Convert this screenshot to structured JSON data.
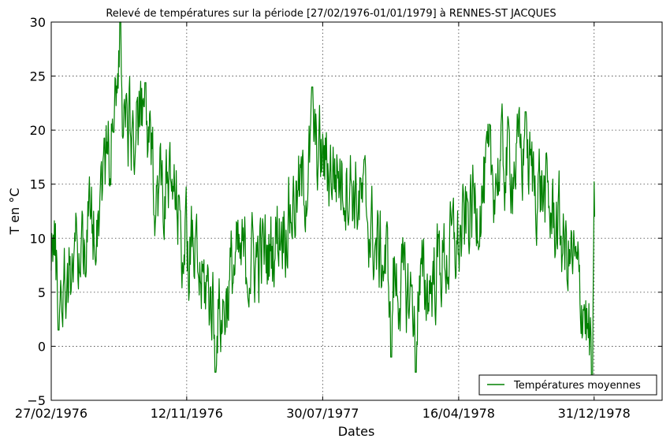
{
  "chart_data": {
    "type": "line",
    "title": "Relevé de températures sur la période [27/02/1976-01/01/1979] à RENNES-ST JACQUES",
    "xlabel": "Dates",
    "ylabel": "T en °C",
    "x_start": "1976-02-27",
    "x_end": "1979-01-01",
    "xlim": [
      "1976-02-27",
      "1979-05-10"
    ],
    "ylim": [
      -5,
      30
    ],
    "y_ticks": [
      -5,
      0,
      5,
      10,
      15,
      20,
      25,
      30
    ],
    "x_ticks": [
      {
        "date": "1976-02-27",
        "label": "27/02/1976"
      },
      {
        "date": "1976-11-12",
        "label": "12/11/1976"
      },
      {
        "date": "1977-07-30",
        "label": "30/07/1977"
      },
      {
        "date": "1978-04-16",
        "label": "16/04/1978"
      },
      {
        "date": "1978-12-31",
        "label": "31/12/1978"
      }
    ],
    "grid": true,
    "legend_position": "bottom-right",
    "series": [
      {
        "name": "Températures moyennes",
        "color": "#008000",
        "monthly_mean": [
          {
            "date": "1976-02-27",
            "value": 10.5
          },
          {
            "date": "1976-03-15",
            "value": 5.5
          },
          {
            "date": "1976-04-15",
            "value": 8.5
          },
          {
            "date": "1976-05-15",
            "value": 11.5
          },
          {
            "date": "1976-06-15",
            "value": 17.5
          },
          {
            "date": "1976-07-01",
            "value": 24.0
          },
          {
            "date": "1976-07-15",
            "value": 21.0
          },
          {
            "date": "1976-08-01",
            "value": 19.5
          },
          {
            "date": "1976-08-20",
            "value": 20.5
          },
          {
            "date": "1976-09-15",
            "value": 15.0
          },
          {
            "date": "1976-10-15",
            "value": 14.0
          },
          {
            "date": "1976-11-15",
            "value": 9.0
          },
          {
            "date": "1976-12-15",
            "value": 5.5
          },
          {
            "date": "1977-01-15",
            "value": 3.0
          },
          {
            "date": "1977-02-15",
            "value": 7.5
          },
          {
            "date": "1977-03-15",
            "value": 8.0
          },
          {
            "date": "1977-04-15",
            "value": 8.5
          },
          {
            "date": "1977-05-15",
            "value": 11.5
          },
          {
            "date": "1977-06-15",
            "value": 14.0
          },
          {
            "date": "1977-07-15",
            "value": 18.0
          },
          {
            "date": "1977-08-15",
            "value": 16.5
          },
          {
            "date": "1977-09-15",
            "value": 15.5
          },
          {
            "date": "1977-10-15",
            "value": 13.0
          },
          {
            "date": "1977-11-15",
            "value": 8.5
          },
          {
            "date": "1977-12-15",
            "value": 6.0
          },
          {
            "date": "1978-01-15",
            "value": 4.5
          },
          {
            "date": "1978-02-15",
            "value": 5.5
          },
          {
            "date": "1978-03-15",
            "value": 8.0
          },
          {
            "date": "1978-04-15",
            "value": 9.5
          },
          {
            "date": "1978-05-15",
            "value": 13.0
          },
          {
            "date": "1978-06-15",
            "value": 15.5
          },
          {
            "date": "1978-07-15",
            "value": 17.0
          },
          {
            "date": "1978-08-15",
            "value": 17.5
          },
          {
            "date": "1978-09-15",
            "value": 15.0
          },
          {
            "date": "1978-10-15",
            "value": 12.0
          },
          {
            "date": "1978-11-15",
            "value": 8.0
          },
          {
            "date": "1978-12-10",
            "value": 4.5
          },
          {
            "date": "1978-12-22",
            "value": 0.5
          },
          {
            "date": "1979-01-01",
            "value": 10.0
          }
        ],
        "extremes": [
          {
            "date": "1976-03-12",
            "value": 1.5
          },
          {
            "date": "1976-06-25",
            "value": 19.8
          },
          {
            "date": "1976-07-08",
            "value": 30.0
          },
          {
            "date": "1976-08-25",
            "value": 24.4
          },
          {
            "date": "1977-01-06",
            "value": -2.4
          },
          {
            "date": "1977-07-10",
            "value": 24.0
          },
          {
            "date": "1977-12-08",
            "value": -1.0
          },
          {
            "date": "1978-01-24",
            "value": -2.4
          },
          {
            "date": "1978-08-22",
            "value": 21.7
          },
          {
            "date": "1978-12-27",
            "value": -3.5
          }
        ]
      }
    ]
  }
}
